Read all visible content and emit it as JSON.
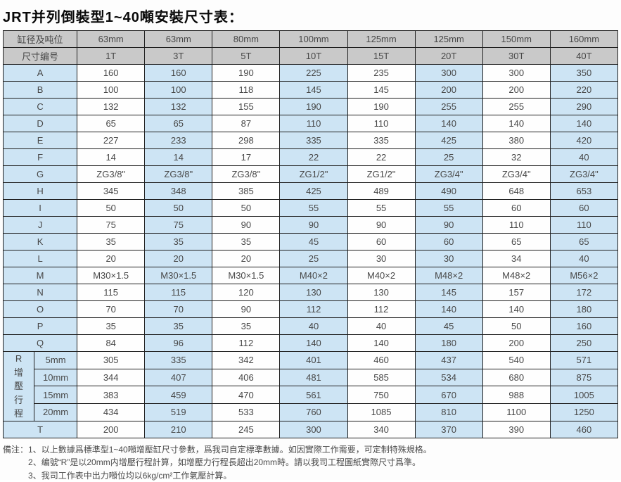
{
  "title": "JRT并列倒裝型1~40噸安裝尺寸表：",
  "colors": {
    "header_bg": "#c9c9c9",
    "cell_blue": "#cde4f4",
    "cell_white": "#fefefe",
    "border": "#1f1f1f"
  },
  "table": {
    "header_row1": [
      "缸径及吨位",
      "63mm",
      "63mm",
      "80mm",
      "100mm",
      "125mm",
      "125mm",
      "150mm",
      "160mm"
    ],
    "header_row2": [
      "尺寸编号",
      "1T",
      "3T",
      "5T",
      "10T",
      "15T",
      "20T",
      "30T",
      "40T"
    ],
    "rows": [
      {
        "label": "A",
        "values": [
          "160",
          "160",
          "190",
          "225",
          "235",
          "300",
          "300",
          "350"
        ]
      },
      {
        "label": "B",
        "values": [
          "100",
          "100",
          "118",
          "145",
          "145",
          "200",
          "200",
          "220"
        ]
      },
      {
        "label": "C",
        "values": [
          "132",
          "132",
          "155",
          "190",
          "190",
          "255",
          "255",
          "290"
        ]
      },
      {
        "label": "D",
        "values": [
          "65",
          "65",
          "87",
          "110",
          "110",
          "140",
          "140",
          "140"
        ]
      },
      {
        "label": "E",
        "values": [
          "227",
          "233",
          "298",
          "335",
          "335",
          "425",
          "380",
          "420"
        ]
      },
      {
        "label": "F",
        "values": [
          "14",
          "14",
          "17",
          "22",
          "22",
          "25",
          "32",
          "40"
        ]
      },
      {
        "label": "G",
        "values": [
          "ZG3/8\"",
          "ZG3/8\"",
          "ZG3/8\"",
          "ZG1/2\"",
          "ZG1/2\"",
          "ZG3/4\"",
          "ZG3/4\"",
          "ZG3/4\""
        ]
      },
      {
        "label": "H",
        "values": [
          "345",
          "348",
          "385",
          "425",
          "489",
          "490",
          "648",
          "653"
        ]
      },
      {
        "label": "I",
        "values": [
          "50",
          "50",
          "50",
          "55",
          "55",
          "55",
          "60",
          "60"
        ]
      },
      {
        "label": "J",
        "values": [
          "75",
          "75",
          "90",
          "90",
          "90",
          "90",
          "110",
          "110"
        ]
      },
      {
        "label": "K",
        "values": [
          "35",
          "35",
          "35",
          "45",
          "60",
          "60",
          "65",
          "65"
        ]
      },
      {
        "label": "L",
        "values": [
          "20",
          "20",
          "20",
          "25",
          "30",
          "30",
          "34",
          "40"
        ]
      },
      {
        "label": "M",
        "values": [
          "M30×1.5",
          "M30×1.5",
          "M30×1.5",
          "M40×2",
          "M40×2",
          "M48×2",
          "M48×2",
          "M56×2"
        ]
      },
      {
        "label": "N",
        "values": [
          "115",
          "115",
          "120",
          "130",
          "130",
          "145",
          "157",
          "172"
        ]
      },
      {
        "label": "O",
        "values": [
          "70",
          "70",
          "90",
          "112",
          "112",
          "140",
          "140",
          "180"
        ]
      },
      {
        "label": "P",
        "values": [
          "35",
          "35",
          "35",
          "40",
          "40",
          "45",
          "50",
          "160"
        ]
      },
      {
        "label": "Q",
        "values": [
          "84",
          "96",
          "112",
          "140",
          "140",
          "180",
          "200",
          "250"
        ]
      }
    ],
    "r_section": {
      "label": "R增壓行程",
      "subrows": [
        {
          "label": "5mm",
          "values": [
            "305",
            "335",
            "342",
            "401",
            "460",
            "437",
            "540",
            "571"
          ]
        },
        {
          "label": "10mm",
          "values": [
            "344",
            "407",
            "406",
            "481",
            "585",
            "534",
            "680",
            "875"
          ]
        },
        {
          "label": "15mm",
          "values": [
            "383",
            "459",
            "470",
            "561",
            "750",
            "670",
            "988",
            "1005"
          ]
        },
        {
          "label": "20mm",
          "values": [
            "434",
            "519",
            "533",
            "760",
            "1085",
            "810",
            "1100",
            "1250"
          ]
        }
      ]
    },
    "t_row": {
      "label": "T",
      "values": [
        "200",
        "210",
        "245",
        "300",
        "340",
        "370",
        "390",
        "460"
      ]
    }
  },
  "notes": {
    "prefix": "備注：",
    "items": [
      "1、以上數據爲標準型1~40噸增壓缸尺寸參數，爲我司自定標準數據。如因實際工作需要，可定制特殊規格。",
      "2、编號“R”是以20mm内增壓行程計算，如增壓力行程長超出20mm時。請以我司工程圖紙實際尺寸爲準。",
      "3、我司工作表中出力噸位均以6kg/cm²工作氣壓計算。"
    ]
  }
}
